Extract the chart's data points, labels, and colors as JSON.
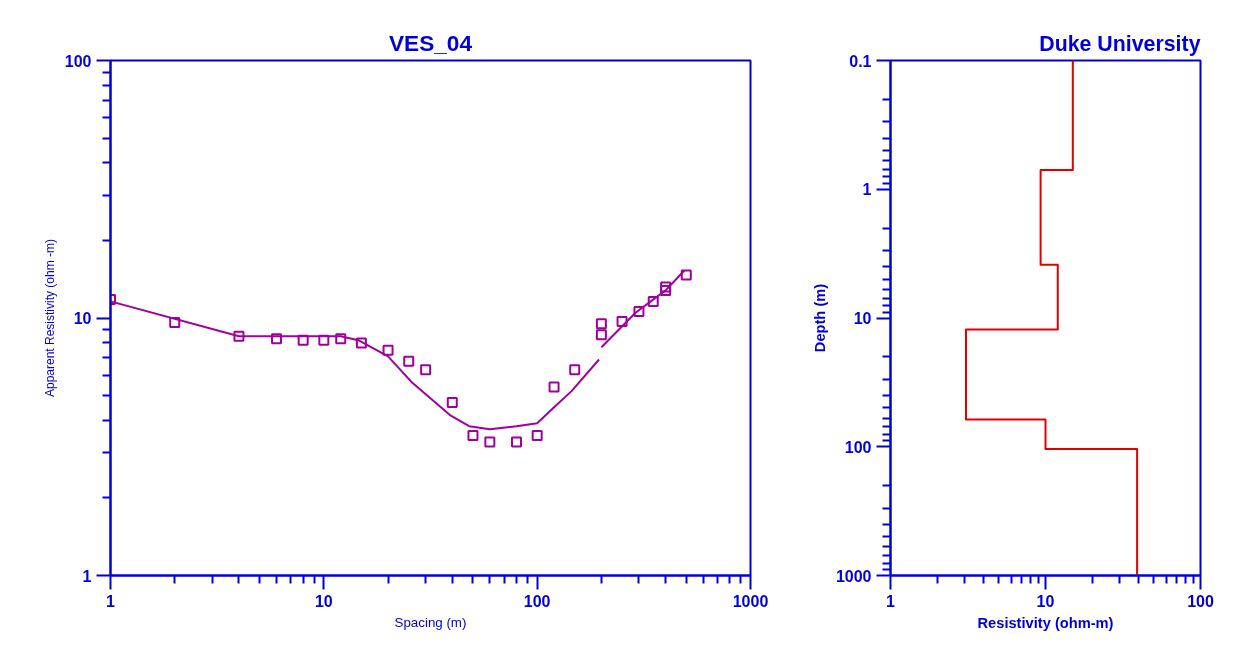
{
  "chart_data": [
    {
      "type": "scatter",
      "title": "VES_04",
      "xlabel": "Spacing (m)",
      "ylabel": "Apparent Resistivity (ohm -m)",
      "log": "xy",
      "grid": false,
      "marker": "square",
      "xlim": [
        1,
        1000
      ],
      "ylim": [
        1,
        100
      ],
      "xticks": [
        1,
        10,
        100,
        1000
      ],
      "yticks": [
        1,
        10,
        100
      ],
      "series": [
        {
          "color": "#a000a0",
          "x": [
            1,
            2,
            4,
            6,
            8,
            10,
            12,
            15,
            20,
            25,
            30,
            40,
            50,
            60,
            80,
            100,
            120,
            150,
            200,
            200,
            250,
            300,
            350,
            400,
            400,
            500
          ],
          "values": [
            11.8,
            9.6,
            8.5,
            8.3,
            8.2,
            8.2,
            8.3,
            8.0,
            7.5,
            6.8,
            6.3,
            4.7,
            3.5,
            3.3,
            3.3,
            3.5,
            5.4,
            6.3,
            8.6,
            9.5,
            9.7,
            10.6,
            11.6,
            12.8,
            13.2,
            14.7
          ]
        },
        {
          "type": "line",
          "color": "#a000a0",
          "marker": "none",
          "x": [
            1,
            4,
            12,
            14.5,
            20,
            26,
            39,
            48,
            60,
            80,
            100,
            120,
            145,
            195
          ],
          "values": [
            11.6,
            8.5,
            8.5,
            8.2,
            7.1,
            5.6,
            4.2,
            3.8,
            3.7,
            3.8,
            3.9,
            4.5,
            5.2,
            6.9
          ]
        },
        {
          "type": "line",
          "color": "#a000a0",
          "marker": "none",
          "x": [
            200,
            290,
            400,
            490
          ],
          "values": [
            7.7,
            10.5,
            12.8,
            15.3
          ]
        }
      ]
    },
    {
      "type": "line",
      "title": "Duke University",
      "xlabel": "Resistivity (ohm-m)",
      "ylabel": "Depth (m)",
      "log": "xy",
      "grid": false,
      "marker": "none",
      "xlim": [
        1,
        100
      ],
      "ylim": [
        1000,
        0.1
      ],
      "xticks": [
        1,
        10,
        100
      ],
      "yticks": [
        0.1,
        1,
        10,
        100,
        1000
      ],
      "series": [
        {
          "color": "#e00000",
          "x": [
            15,
            15,
            9.3,
            9.3,
            12,
            12,
            3.07,
            3.07,
            10,
            10,
            39,
            39
          ],
          "values": [
            0.1,
            0.71,
            0.71,
            3.85,
            3.85,
            12.3,
            12.3,
            61.5,
            61.5,
            104,
            104,
            1000
          ]
        }
      ]
    }
  ]
}
